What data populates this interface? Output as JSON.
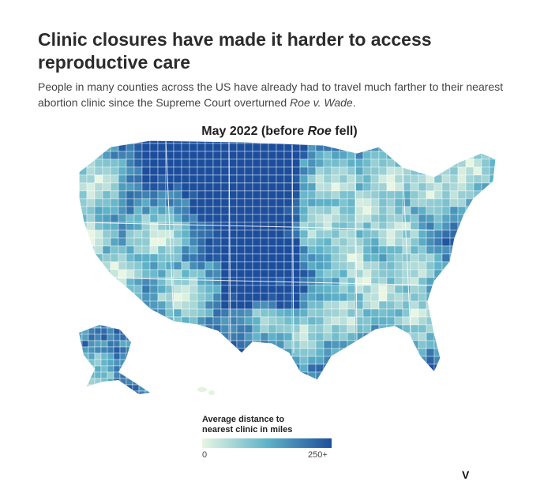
{
  "headline": {
    "line1": "Clinic closures have made it harder to access",
    "line2": "reproductive care"
  },
  "dek": {
    "before": "People in many counties across the US have already had to travel much farther to their nearest abortion clinic since the Supreme Court overturned ",
    "case_name": "Roe v. Wade",
    "after": "."
  },
  "map": {
    "title_before": "May 2022 (before ",
    "title_italic": "Roe",
    "title_after": " fell)",
    "region": "United States (counties)"
  },
  "legend": {
    "title_line1": "Average distance to",
    "title_line2": "nearest clinic in miles",
    "min_label": "0",
    "max_label": "250+",
    "color_low": "#e8f6e4",
    "color_mid": "#5fb3c8",
    "color_high": "#1c4e9c"
  },
  "brand": {
    "mark": "V"
  }
}
